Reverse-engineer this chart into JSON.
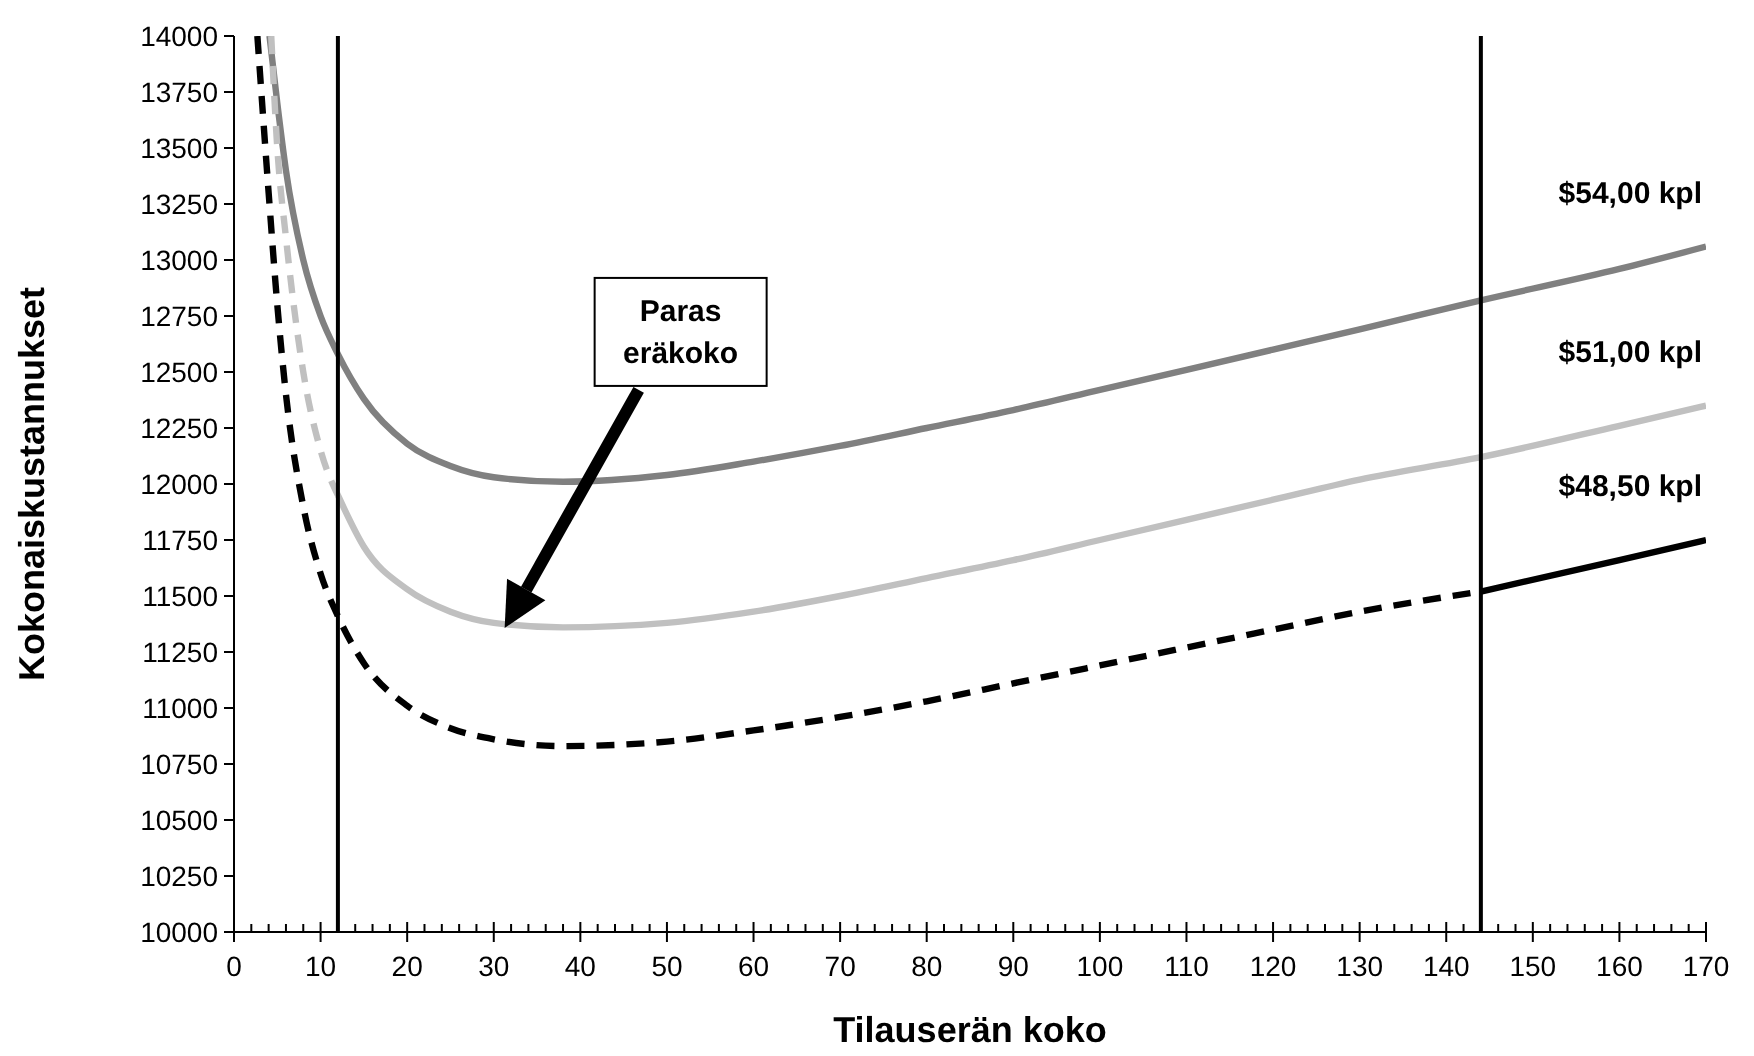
{
  "chart_data": {
    "type": "line",
    "xlabel": "Tilauserän koko",
    "ylabel": "Kokonaiskustannukset",
    "xlim": [
      0,
      170
    ],
    "ylim": [
      10000,
      14000
    ],
    "xticks": [
      0,
      {
        "value": 2,
        "label": null
      },
      {
        "value": 4,
        "label": null
      },
      {
        "value": 6,
        "label": null
      },
      {
        "value": 8,
        "label": null
      },
      10,
      {
        "value": 12,
        "label": null
      },
      {
        "value": 14,
        "label": null
      },
      {
        "value": 16,
        "label": null
      },
      {
        "value": 18,
        "label": null
      },
      20,
      {
        "value": 22,
        "label": null
      },
      {
        "value": 24,
        "label": null
      },
      {
        "value": 26,
        "label": null
      },
      {
        "value": 28,
        "label": null
      },
      30,
      {
        "value": 32,
        "label": null
      },
      {
        "value": 34,
        "label": null
      },
      {
        "value": 36,
        "label": null
      },
      {
        "value": 38,
        "label": null
      },
      40,
      {
        "value": 42,
        "label": null
      },
      {
        "value": 44,
        "label": null
      },
      {
        "value": 46,
        "label": null
      },
      {
        "value": 48,
        "label": null
      },
      50,
      {
        "value": 52,
        "label": null
      },
      {
        "value": 54,
        "label": null
      },
      {
        "value": 56,
        "label": null
      },
      {
        "value": 58,
        "label": null
      },
      60,
      {
        "value": 62,
        "label": null
      },
      {
        "value": 64,
        "label": null
      },
      {
        "value": 66,
        "label": null
      },
      {
        "value": 68,
        "label": null
      },
      70,
      {
        "value": 72,
        "label": null
      },
      {
        "value": 74,
        "label": null
      },
      {
        "value": 76,
        "label": null
      },
      {
        "value": 78,
        "label": null
      },
      80,
      {
        "value": 82,
        "label": null
      },
      {
        "value": 84,
        "label": null
      },
      {
        "value": 86,
        "label": null
      },
      {
        "value": 88,
        "label": null
      },
      90,
      {
        "value": 92,
        "label": null
      },
      {
        "value": 94,
        "label": null
      },
      {
        "value": 96,
        "label": null
      },
      {
        "value": 98,
        "label": null
      },
      100,
      {
        "value": 102,
        "label": null
      },
      {
        "value": 104,
        "label": null
      },
      {
        "value": 106,
        "label": null
      },
      {
        "value": 108,
        "label": null
      },
      110,
      {
        "value": 112,
        "label": null
      },
      {
        "value": 114,
        "label": null
      },
      {
        "value": 116,
        "label": null
      },
      {
        "value": 118,
        "label": null
      },
      120,
      {
        "value": 122,
        "label": null
      },
      {
        "value": 124,
        "label": null
      },
      {
        "value": 126,
        "label": null
      },
      {
        "value": 128,
        "label": null
      },
      130,
      {
        "value": 132,
        "label": null
      },
      {
        "value": 134,
        "label": null
      },
      {
        "value": 136,
        "label": null
      },
      {
        "value": 138,
        "label": null
      },
      140,
      {
        "value": 142,
        "label": null
      },
      {
        "value": 144,
        "label": null
      },
      {
        "value": 146,
        "label": null
      },
      {
        "value": 148,
        "label": null
      },
      150,
      {
        "value": 152,
        "label": null
      },
      {
        "value": 154,
        "label": null
      },
      {
        "value": 156,
        "label": null
      },
      {
        "value": 158,
        "label": null
      },
      160,
      {
        "value": 162,
        "label": null
      },
      {
        "value": 164,
        "label": null
      },
      {
        "value": 166,
        "label": null
      },
      {
        "value": 168,
        "label": null
      },
      170
    ],
    "yticks": [
      10000,
      10250,
      10500,
      10750,
      11000,
      11250,
      11500,
      11750,
      12000,
      12250,
      12500,
      12750,
      13000,
      13250,
      13500,
      13750,
      14000
    ],
    "grid": false,
    "marker": "none",
    "series": [
      {
        "name": "$54,00 kpl",
        "color": "#808080",
        "line_style": "solid",
        "x": [
          4.1,
          5,
          6,
          8,
          10,
          12,
          15,
          20,
          25,
          30,
          38,
          50,
          60,
          70,
          80,
          90,
          100,
          110,
          120,
          130,
          144,
          160,
          170
        ],
        "values": [
          14000,
          13700,
          13400,
          13000,
          12750,
          12580,
          12380,
          12180,
          12080,
          12030,
          12010,
          12040,
          12100,
          12170,
          12250,
          12330,
          12420,
          12510,
          12600,
          12690,
          12820,
          12960,
          13060
        ]
      },
      {
        "color": "#c0c0c0",
        "line_style": "dashed",
        "x": [
          4.3,
          5,
          6,
          8,
          10,
          12
        ],
        "values": [
          14000,
          13500,
          13100,
          12500,
          12150,
          11950
        ]
      },
      {
        "name": "$51,00 kpl",
        "color": "#c0c0c0",
        "line_style": "solid",
        "x": [
          12,
          15,
          20,
          25,
          30,
          38,
          50,
          60,
          70,
          80,
          90,
          100,
          110,
          120,
          130,
          144,
          160,
          170
        ],
        "values": [
          11950,
          11720,
          11530,
          11430,
          11380,
          11360,
          11380,
          11430,
          11500,
          11580,
          11660,
          11750,
          11840,
          11930,
          12020,
          12120,
          12260,
          12350
        ]
      },
      {
        "color": "#000000",
        "line_style": "dashed",
        "x": [
          2.7,
          4,
          5,
          6,
          8,
          10,
          12,
          15,
          20,
          25,
          30,
          38,
          50,
          60,
          70,
          80,
          90,
          100,
          110,
          120,
          130,
          144
        ],
        "values": [
          14000,
          13300,
          12800,
          12400,
          11900,
          11600,
          11410,
          11200,
          11010,
          10910,
          10860,
          10830,
          10850,
          10900,
          10960,
          11030,
          11110,
          11190,
          11270,
          11350,
          11430,
          11520
        ]
      },
      {
        "name": "$48,50 kpl",
        "color": "#000000",
        "line_style": "solid",
        "x": [
          144,
          160,
          170
        ],
        "values": [
          11520,
          11660,
          11750
        ]
      }
    ],
    "ref_lines": [
      {
        "axis": "x",
        "value": 12,
        "color": "#000000"
      },
      {
        "axis": "x",
        "value": 144,
        "color": "#000000"
      }
    ],
    "annotations": [
      "Paras eräkoko"
    ]
  }
}
